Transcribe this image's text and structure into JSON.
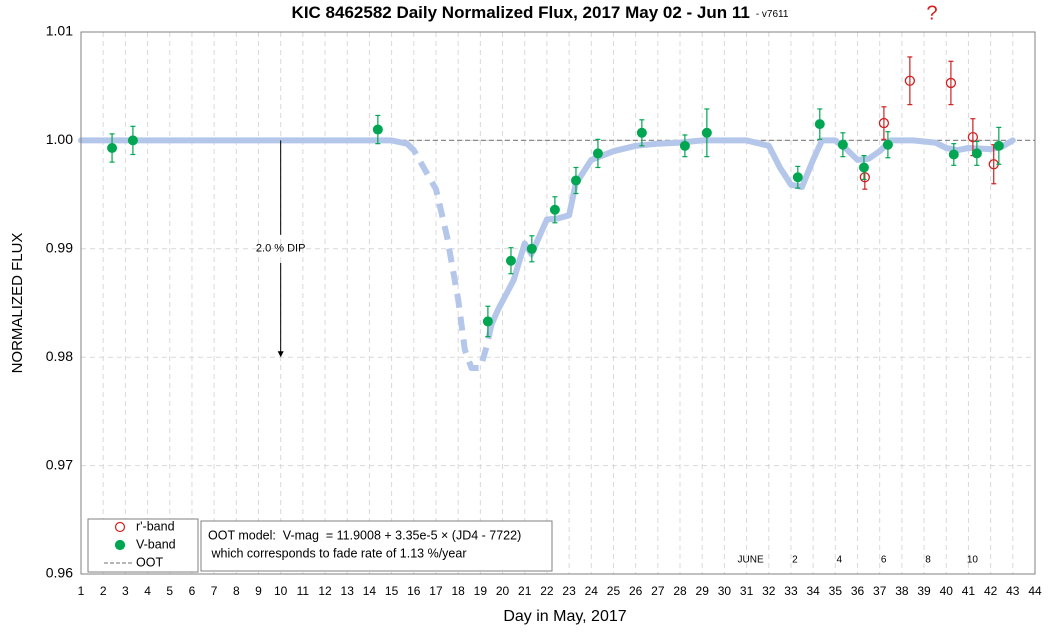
{
  "chart_data": {
    "type": "scatter",
    "title": "KIC 8462582 Daily Normalized Flux, 2017 May 02 - Jun 11",
    "version": "- v7611",
    "xlabel": "Day in May, 2017",
    "ylabel": "NORMALIZED FLUX",
    "xlim": [
      1,
      44
    ],
    "xticks": [
      1,
      2,
      3,
      4,
      5,
      6,
      7,
      8,
      9,
      10,
      11,
      12,
      13,
      14,
      15,
      16,
      17,
      18,
      19,
      20,
      21,
      22,
      23,
      24,
      25,
      26,
      27,
      28,
      29,
      30,
      31,
      32,
      33,
      34,
      35,
      36,
      37,
      38,
      39,
      40,
      41,
      42,
      43,
      44
    ],
    "ylim": [
      0.96,
      1.01
    ],
    "yticks": [
      0.96,
      0.97,
      0.98,
      0.99,
      {
        "value": 1,
        "label": "1.00"
      },
      1.01
    ],
    "grid": true,
    "june_ticks": [
      {
        "value": 31,
        "label": "JUNE"
      },
      {
        "value": 33,
        "label": "2"
      },
      {
        "value": 35,
        "label": "4"
      },
      {
        "value": 37,
        "label": "6"
      },
      {
        "value": 39,
        "label": "8"
      },
      {
        "value": 41,
        "label": "10"
      }
    ],
    "series": [
      {
        "name": "r'-band",
        "color": "#d02020",
        "marker": "open",
        "x": [
          36.33,
          37.19,
          38.36,
          40.21,
          41.2,
          42.14
        ],
        "values": [
          0.9966,
          1.0016,
          1.0055,
          1.0053,
          1.0003,
          0.9978
        ],
        "errors": [
          0.0011,
          0.0015,
          0.0022,
          0.002,
          0.0017,
          0.0018
        ]
      },
      {
        "name": "V-band",
        "color": "#00a651",
        "marker": "filled",
        "x": [
          2.4,
          3.34,
          14.38,
          19.34,
          20.38,
          21.32,
          22.36,
          23.31,
          24.3,
          26.28,
          28.22,
          29.21,
          33.31,
          34.3,
          35.34,
          36.29,
          37.37,
          40.34,
          41.38,
          42.37
        ],
        "values": [
          0.9993,
          1.0,
          1.001,
          0.9833,
          0.9889,
          0.99,
          0.9936,
          0.9963,
          0.9988,
          1.0007,
          0.9995,
          1.0007,
          0.9966,
          1.0015,
          0.9996,
          0.9975,
          0.9996,
          0.9987,
          0.9988,
          0.9995
        ],
        "errors": [
          0.0013,
          0.0013,
          0.0013,
          0.0014,
          0.0012,
          0.0012,
          0.0012,
          0.0012,
          0.0013,
          0.0012,
          0.001,
          0.0022,
          0.001,
          0.0014,
          0.0011,
          0.0011,
          0.0012,
          0.001,
          0.0011,
          0.0017
        ]
      }
    ],
    "reference_line": {
      "name": "OOT",
      "value": 1,
      "color": "#8c8c8c"
    },
    "model_color": "#b4c6ea",
    "model_segments": [
      {
        "style": "solid",
        "x": [
          1,
          15,
          15.7
        ],
        "values": [
          1.0,
          1.0,
          0.9997
        ]
      },
      {
        "style": "dashed",
        "x": [
          15.7,
          16,
          16.5,
          17,
          17.5,
          18,
          18.3,
          18.6,
          19.0,
          19.3,
          19.5
        ],
        "values": [
          0.9997,
          0.9991,
          0.9973,
          0.9955,
          0.9911,
          0.9853,
          0.9807,
          0.979,
          0.979,
          0.9811,
          0.983
        ]
      },
      {
        "style": "solid",
        "x": [
          19.5,
          19.8,
          20.5,
          21,
          21.3,
          22,
          22.5,
          23,
          23.3,
          24,
          25,
          26,
          27,
          28,
          29,
          30,
          31,
          32,
          32.5,
          33,
          33.5,
          34,
          34.4,
          35,
          35.5,
          36,
          36.5,
          37,
          37.5,
          38.5,
          39.5,
          40,
          40.5,
          41,
          42,
          42.5,
          43
        ],
        "values": [
          0.983,
          0.9844,
          0.9871,
          0.9905,
          0.9895,
          0.9927,
          0.9928,
          0.9931,
          0.996,
          0.9982,
          0.999,
          0.9995,
          0.9997,
          0.9998,
          1.0,
          1.0,
          1.0,
          0.9995,
          0.9975,
          0.9959,
          0.9957,
          0.9982,
          1.0,
          1.0,
          0.9992,
          0.9982,
          0.9983,
          0.999,
          1.0,
          1.0,
          0.9998,
          0.9993,
          0.9991,
          0.9993,
          0.9992,
          0.9994,
          1.0
        ]
      }
    ],
    "dip_arrow": {
      "label": "2.0 % DIP",
      "x": 10,
      "from": 1,
      "to": 0.98
    },
    "question_mark": "?",
    "model_note": [
      "OOT model:  V-mag  = 11.9008 + 3.35e-5 × (JD4 - 7722)",
      " which corresponds to fade rate of 1.13 %/year"
    ]
  }
}
